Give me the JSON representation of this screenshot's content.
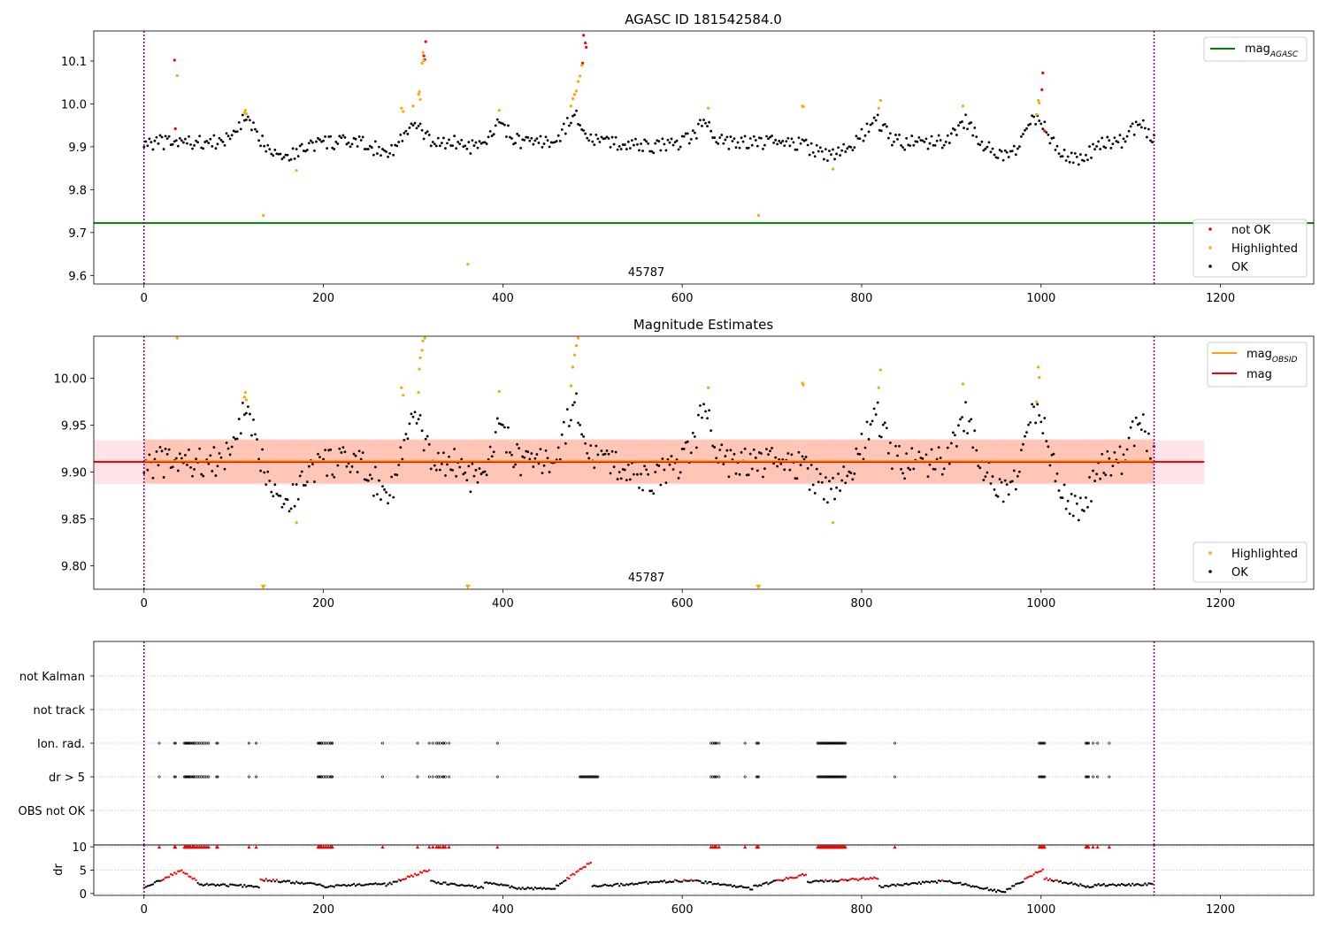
{
  "chart_data": [
    {
      "type": "scatter",
      "title": "AGASC ID 181542584.0",
      "xlim": [
        -56,
        1304
      ],
      "ylim": [
        9.58,
        10.17
      ],
      "xticks": [
        "0",
        "200",
        "400",
        "600",
        "800",
        "1000",
        "1200"
      ],
      "yticks": [
        "9.6",
        "9.7",
        "9.8",
        "9.9",
        "10.0",
        "10.1"
      ],
      "obsid_label": "45787",
      "vlines": [
        0,
        1126
      ],
      "hline": {
        "name": "mag_AGASC",
        "value": 9.722,
        "color": "#008000"
      },
      "legend_upper": "top-right",
      "legend_lower": "bottom-right",
      "legend_upper_entries": [
        {
          "label": "mag",
          "sub": "AGASC",
          "color": "#008000"
        }
      ],
      "legend_lower_entries": [
        {
          "label": "not OK",
          "color": "#ff0000"
        },
        {
          "label": "Highlighted",
          "color": "#ffa500"
        },
        {
          "label": "OK",
          "color": "#000000"
        }
      ],
      "series": [
        {
          "name": "not OK",
          "color": "#ff0000",
          "points": [
            [
              34,
              10.102
            ],
            [
              35,
              9.942
            ],
            [
              312,
              10.112
            ],
            [
              313,
              10.103
            ],
            [
              314,
              10.145
            ],
            [
              489,
              10.095
            ],
            [
              492,
              10.142
            ],
            [
              493,
              10.132
            ],
            [
              490,
              10.16
            ],
            [
              1001,
              10.033
            ],
            [
              1002,
              10.072
            ],
            [
              1004,
              9.937
            ]
          ]
        },
        {
          "name": "Highlighted",
          "color": "#ffa500",
          "points": [
            [
              37,
              10.066
            ],
            [
              112,
              9.98
            ],
            [
              113,
              9.985
            ],
            [
              114,
              9.977
            ],
            [
              133,
              9.74
            ],
            [
              170,
              9.845
            ],
            [
              287,
              9.99
            ],
            [
              289,
              9.982
            ],
            [
              300,
              9.995
            ],
            [
              306,
              10.022
            ],
            [
              307,
              10.028
            ],
            [
              308,
              10.01
            ],
            [
              310,
              10.095
            ],
            [
              311,
              10.12
            ],
            [
              312,
              10.101
            ],
            [
              361,
              9.626
            ],
            [
              396,
              9.985
            ],
            [
              476,
              9.995
            ],
            [
              478,
              10.012
            ],
            [
              480,
              10.022
            ],
            [
              482,
              10.03
            ],
            [
              484,
              10.052
            ],
            [
              486,
              10.065
            ],
            [
              488,
              10.09
            ],
            [
              629,
              9.99
            ],
            [
              685,
              9.74
            ],
            [
              734,
              9.995
            ],
            [
              735,
              9.993
            ],
            [
              768,
              9.848
            ],
            [
              821,
              10.008
            ],
            [
              819,
              9.99
            ],
            [
              913,
              9.995
            ],
            [
              995,
              9.975
            ],
            [
              997,
              10.008
            ],
            [
              998,
              10.002
            ]
          ]
        }
      ],
      "ok_series": {
        "name": "OK",
        "color": "#000000",
        "x_range": [
          0,
          1126
        ],
        "x_step": 2,
        "base": 9.91,
        "bumps": [
          [
            112,
            0.05
          ],
          [
            300,
            0.04
          ],
          [
            395,
            0.05
          ],
          [
            480,
            0.06
          ],
          [
            625,
            0.04
          ],
          [
            815,
            0.05
          ],
          [
            915,
            0.05
          ],
          [
            995,
            0.06
          ],
          [
            1110,
            0.04
          ]
        ],
        "dips": [
          [
            160,
            -0.03
          ],
          [
            270,
            -0.02
          ],
          [
            380,
            -0.02
          ],
          [
            560,
            -0.01
          ],
          [
            760,
            -0.03
          ],
          [
            960,
            -0.03
          ],
          [
            1040,
            -0.04
          ]
        ]
      }
    },
    {
      "type": "scatter",
      "title": "Magnitude Estimates",
      "xlim": [
        -56,
        1304
      ],
      "ylim": [
        9.775,
        10.045
      ],
      "xticks": [
        "0",
        "200",
        "400",
        "600",
        "800",
        "1000",
        "1200"
      ],
      "yticks": [
        "9.80",
        "9.85",
        "9.90",
        "9.95",
        "10.00"
      ],
      "obsid_label": "45787",
      "vlines": [
        0,
        1126
      ],
      "mag_line": {
        "name": "mag",
        "value": 9.911,
        "color": "#ff0000",
        "x_range": [
          -56,
          1182
        ]
      },
      "mag_obsid_line": {
        "name": "mag_OBSID",
        "value": 9.912,
        "color": "#ffa500",
        "x_range": [
          0,
          1126
        ]
      },
      "band_mag": {
        "range": [
          9.887,
          9.934
        ],
        "color": "#ffc0cb"
      },
      "band_obsid": {
        "range": [
          9.888,
          9.935
        ],
        "color": "#ffa07a"
      },
      "legend_upper": "top-right",
      "legend_lower": "bottom-right",
      "legend_upper_entries": [
        {
          "label": "mag",
          "sub": "OBSID",
          "color": "#ffa500"
        },
        {
          "label": "mag",
          "sub": "",
          "color": "#ff0000"
        }
      ],
      "legend_lower_entries": [
        {
          "label": "Highlighted",
          "color": "#ffa500"
        },
        {
          "label": "OK",
          "color": "#000000"
        }
      ],
      "series": [
        {
          "name": "Highlighted",
          "color": "#ffa500",
          "points": [
            [
              37,
              10.043
            ],
            [
              112,
              9.98
            ],
            [
              113,
              9.985
            ],
            [
              114,
              9.977
            ],
            [
              170,
              9.846
            ],
            [
              287,
              9.99
            ],
            [
              289,
              9.982
            ],
            [
              306,
              9.985
            ],
            [
              307,
              10.01
            ],
            [
              308,
              10.022
            ],
            [
              310,
              10.03
            ],
            [
              311,
              10.04
            ],
            [
              313,
              10.043
            ],
            [
              396,
              9.986
            ],
            [
              476,
              9.992
            ],
            [
              478,
              10.012
            ],
            [
              480,
              10.025
            ],
            [
              482,
              10.035
            ],
            [
              484,
              10.043
            ],
            [
              629,
              9.99
            ],
            [
              734,
              9.995
            ],
            [
              735,
              9.993
            ],
            [
              768,
              9.846
            ],
            [
              819,
              9.99
            ],
            [
              821,
              10.009
            ],
            [
              913,
              9.994
            ],
            [
              995,
              9.975
            ],
            [
              997,
              10.012
            ],
            [
              998,
              10.001
            ]
          ]
        },
        {
          "name": "Highlighted",
          "color": "#ffa500",
          "marker": "triangle-down",
          "points": [
            [
              133,
              9.777
            ],
            [
              361,
              9.777
            ],
            [
              685,
              9.777
            ]
          ]
        }
      ],
      "ok_series": {
        "name": "OK",
        "color": "#000000",
        "x_range": [
          0,
          1126
        ],
        "x_step": 2,
        "base": 9.91,
        "bumps": [
          [
            112,
            0.05
          ],
          [
            300,
            0.05
          ],
          [
            395,
            0.05
          ],
          [
            480,
            0.06
          ],
          [
            625,
            0.05
          ],
          [
            815,
            0.05
          ],
          [
            915,
            0.05
          ],
          [
            995,
            0.06
          ],
          [
            1110,
            0.04
          ]
        ],
        "dips": [
          [
            160,
            -0.04
          ],
          [
            270,
            -0.03
          ],
          [
            380,
            -0.03
          ],
          [
            560,
            -0.02
          ],
          [
            760,
            -0.03
          ],
          [
            960,
            -0.03
          ],
          [
            1040,
            -0.05
          ]
        ]
      }
    },
    {
      "type": "scatter",
      "title": "",
      "xlim": [
        -56,
        1304
      ],
      "xticks": [
        "0",
        "200",
        "400",
        "600",
        "800",
        "1000",
        "1200"
      ],
      "flag_labels": [
        "not Kalman",
        "not track",
        "Ion. rad.",
        "dr > 5",
        "OBS not OK"
      ],
      "vlines": [
        0,
        1126
      ],
      "ion_rad_x": [
        17,
        34,
        35,
        45,
        46,
        47,
        48,
        49,
        50,
        51,
        52,
        54,
        55,
        56,
        58,
        60,
        62,
        64,
        66,
        68,
        70,
        72,
        81,
        82,
        117,
        125,
        194,
        195,
        196,
        197,
        198,
        200,
        202,
        204,
        206,
        208,
        209,
        210,
        266,
        305,
        318,
        322,
        326,
        328,
        330,
        333,
        334,
        336,
        340,
        394,
        632,
        634,
        636,
        637,
        638,
        641,
        670,
        683,
        684,
        685,
        751,
        752,
        753,
        754,
        755,
        756,
        757,
        758,
        759,
        760,
        761,
        762,
        763,
        764,
        765,
        766,
        767,
        768,
        769,
        770,
        771,
        772,
        773,
        774,
        775,
        776,
        777,
        778,
        779,
        780,
        781,
        782,
        837,
        998,
        999,
        1000,
        1001,
        1002,
        1003,
        1004,
        1050,
        1051,
        1052,
        1053,
        1058,
        1063,
        1076
      ],
      "dr5_x": [
        17,
        34,
        35,
        45,
        46,
        47,
        48,
        49,
        50,
        51,
        52,
        54,
        55,
        56,
        58,
        60,
        62,
        64,
        66,
        68,
        70,
        72,
        81,
        82,
        117,
        125,
        194,
        195,
        196,
        197,
        198,
        200,
        202,
        204,
        206,
        208,
        209,
        210,
        266,
        305,
        318,
        322,
        326,
        328,
        330,
        333,
        334,
        336,
        340,
        394,
        486,
        487,
        488,
        489,
        490,
        491,
        492,
        493,
        494,
        495,
        496,
        497,
        498,
        499,
        500,
        501,
        502,
        503,
        504,
        505,
        506,
        632,
        634,
        636,
        637,
        638,
        641,
        670,
        683,
        684,
        685,
        751,
        752,
        753,
        754,
        755,
        756,
        757,
        758,
        759,
        760,
        761,
        762,
        763,
        764,
        765,
        766,
        767,
        768,
        769,
        770,
        771,
        772,
        773,
        774,
        775,
        776,
        777,
        778,
        779,
        780,
        781,
        782,
        837,
        998,
        999,
        1000,
        1001,
        1002,
        1003,
        1004,
        1050,
        1051,
        1052,
        1053,
        1058,
        1063,
        1076
      ]
    },
    {
      "type": "scatter",
      "title": "",
      "ylabel": "dr",
      "xlim": [
        -56,
        1304
      ],
      "ylim": [
        -0.4,
        10.4
      ],
      "xticks": [
        "0",
        "200",
        "400",
        "600",
        "800",
        "1000",
        "1200"
      ],
      "yticks": [
        "0",
        "5",
        "10"
      ],
      "vlines": [
        0,
        1126
      ],
      "dr_flag_x": [
        17,
        34,
        35,
        45,
        46,
        47,
        48,
        49,
        50,
        51,
        52,
        54,
        55,
        56,
        58,
        60,
        62,
        64,
        66,
        68,
        70,
        72,
        81,
        82,
        117,
        125,
        194,
        195,
        196,
        197,
        198,
        200,
        202,
        204,
        206,
        208,
        209,
        210,
        266,
        305,
        318,
        322,
        326,
        328,
        330,
        333,
        334,
        336,
        340,
        394,
        632,
        634,
        636,
        637,
        638,
        641,
        670,
        683,
        684,
        685,
        751,
        752,
        753,
        754,
        755,
        756,
        757,
        758,
        759,
        760,
        761,
        762,
        763,
        764,
        765,
        766,
        767,
        768,
        769,
        770,
        771,
        772,
        773,
        774,
        775,
        776,
        777,
        778,
        779,
        780,
        781,
        782,
        837,
        998,
        999,
        1000,
        1001,
        1002,
        1003,
        1004,
        1050,
        1051,
        1052,
        1053,
        1058,
        1063,
        1076
      ],
      "dr_curve": {
        "x_range": [
          0,
          1126
        ],
        "x_step": 2,
        "segments": [
          [
            0,
            40,
            1.2,
            4.8
          ],
          [
            40,
            60,
            5.0,
            2.5
          ],
          [
            60,
            130,
            2.0,
            1.5
          ],
          [
            130,
            200,
            3.0,
            1.8
          ],
          [
            200,
            270,
            1.5,
            2.2
          ],
          [
            270,
            320,
            1.8,
            5.2
          ],
          [
            320,
            380,
            2.5,
            1.2
          ],
          [
            380,
            420,
            2.5,
            1.0
          ],
          [
            420,
            460,
            1.0,
            1.2
          ],
          [
            460,
            500,
            1.5,
            7.0
          ],
          [
            500,
            620,
            1.5,
            3.0
          ],
          [
            620,
            680,
            2.5,
            1.0
          ],
          [
            680,
            740,
            1.5,
            4.2
          ],
          [
            740,
            820,
            2.5,
            3.3
          ],
          [
            820,
            900,
            1.5,
            2.8
          ],
          [
            900,
            960,
            2.5,
            0.2
          ],
          [
            960,
            1004,
            0.5,
            5.4
          ],
          [
            1004,
            1060,
            3.2,
            1.2
          ],
          [
            1060,
            1126,
            1.8,
            2.0
          ]
        ]
      }
    }
  ]
}
